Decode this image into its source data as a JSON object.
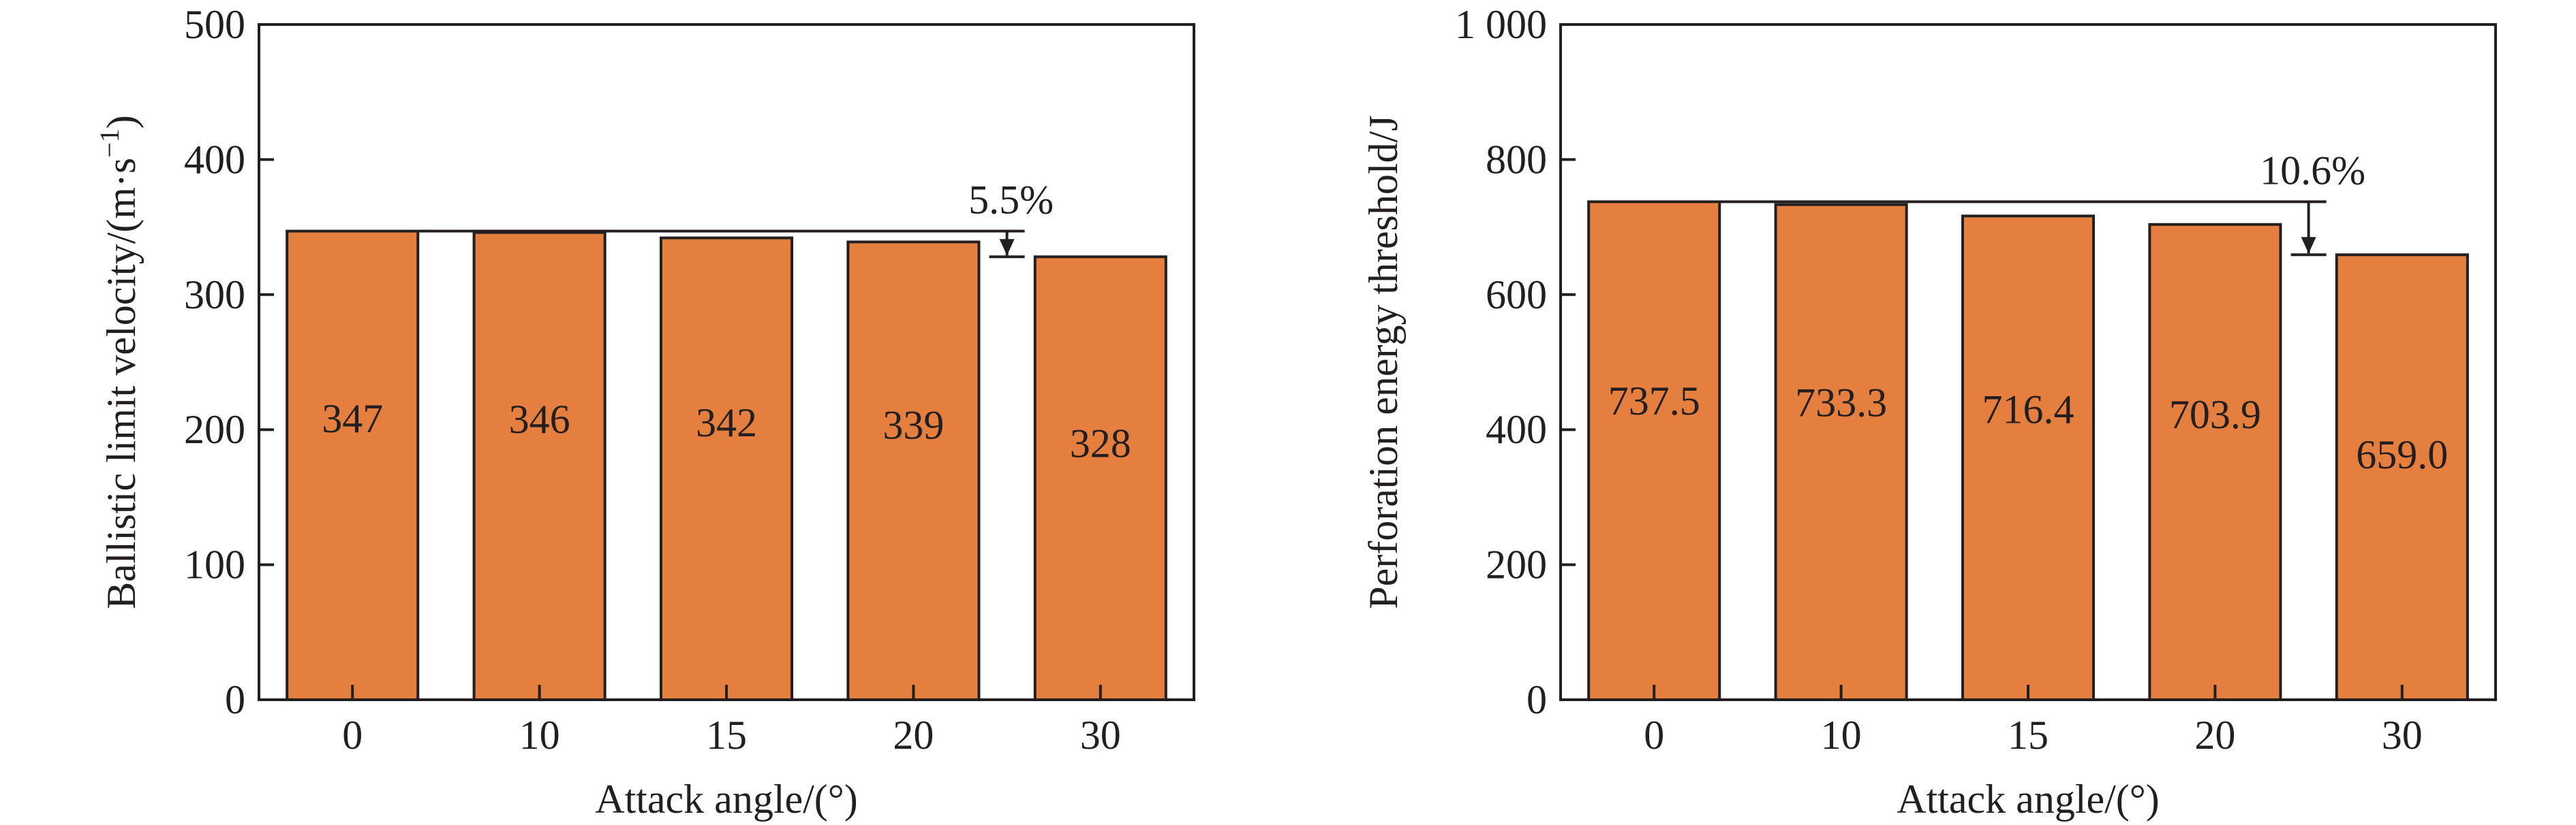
{
  "chart_data": [
    {
      "type": "bar",
      "categories": [
        "0",
        "10",
        "15",
        "20",
        "30"
      ],
      "values": [
        347,
        346,
        342,
        339,
        328
      ],
      "data_labels": [
        "347",
        "346",
        "342",
        "339",
        "328"
      ],
      "title": "",
      "xlabel": "Attack angle/(°)",
      "ylabel_main": "Ballistic limit velocity/(m·s",
      "ylabel_sup": "−1",
      "ylabel_close": ")",
      "ylim": [
        0,
        500
      ],
      "yticks": [
        "0",
        "100",
        "200",
        "300",
        "400",
        "500"
      ],
      "annotation": {
        "text": "5.5%",
        "from_value": 347,
        "to_value": 328
      },
      "bar_color": "#e57f3f",
      "grid": false,
      "legend": "none"
    },
    {
      "type": "bar",
      "categories": [
        "0",
        "10",
        "15",
        "20",
        "30"
      ],
      "values": [
        737.5,
        733.3,
        716.4,
        703.9,
        659.0
      ],
      "data_labels": [
        "737.5",
        "733.3",
        "716.4",
        "703.9",
        "659.0"
      ],
      "title": "",
      "xlabel": "Attack angle/(°)",
      "ylabel": "Perforation energy threshold/J",
      "ylim": [
        0,
        1000
      ],
      "yticks": [
        "0",
        "200",
        "400",
        "600",
        "800",
        "1 000"
      ],
      "annotation": {
        "text": "10.6%",
        "from_value": 737.5,
        "to_value": 659.0
      },
      "bar_color": "#e57f3f",
      "grid": false,
      "legend": "none"
    }
  ]
}
